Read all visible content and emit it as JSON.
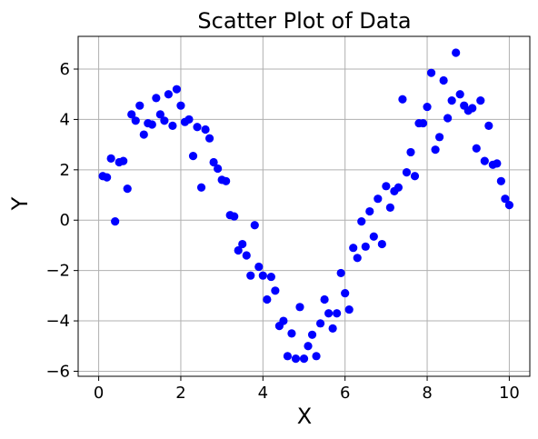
{
  "chart_data": {
    "type": "scatter",
    "title": "Scatter Plot of Data",
    "xlabel": "X",
    "ylabel": "Y",
    "xlim": [
      -0.5,
      10.5
    ],
    "ylim": [
      -6.2,
      7.3
    ],
    "xticks": [
      0,
      2,
      4,
      6,
      8,
      10
    ],
    "xtick_labels": [
      "0",
      "2",
      "4",
      "6",
      "8",
      "10"
    ],
    "yticks": [
      -6,
      -4,
      -2,
      0,
      2,
      4,
      6
    ],
    "ytick_labels": [
      "−6",
      "−4",
      "−2",
      "0",
      "2",
      "4",
      "6"
    ],
    "grid": true,
    "marker_color": "#0000ff",
    "x": [
      0.1,
      0.2,
      0.3,
      0.4,
      0.5,
      0.6,
      0.7,
      0.8,
      0.9,
      1.0,
      1.1,
      1.2,
      1.3,
      1.4,
      1.5,
      1.6,
      1.7,
      1.8,
      1.9,
      2.0,
      2.1,
      2.2,
      2.3,
      2.4,
      2.5,
      2.6,
      2.7,
      2.8,
      2.9,
      3.0,
      3.1,
      3.2,
      3.3,
      3.4,
      3.5,
      3.6,
      3.7,
      3.8,
      3.9,
      4.0,
      4.1,
      4.2,
      4.3,
      4.4,
      4.5,
      4.6,
      4.7,
      4.8,
      4.9,
      5.0,
      5.1,
      5.2,
      5.3,
      5.4,
      5.5,
      5.6,
      5.7,
      5.8,
      5.9,
      6.0,
      6.1,
      6.2,
      6.3,
      6.4,
      6.5,
      6.6,
      6.7,
      6.8,
      6.9,
      7.0,
      7.1,
      7.2,
      7.3,
      7.4,
      7.5,
      7.6,
      7.7,
      7.8,
      7.9,
      8.0,
      8.1,
      8.2,
      8.3,
      8.4,
      8.5,
      8.6,
      8.7,
      8.8,
      8.9,
      9.0,
      9.1,
      9.2,
      9.3,
      9.4,
      9.5,
      9.6,
      9.7,
      9.8,
      9.9,
      10.0
    ],
    "y": [
      1.75,
      1.7,
      2.45,
      -0.05,
      2.3,
      2.35,
      1.25,
      4.2,
      3.95,
      4.55,
      3.4,
      3.85,
      3.8,
      4.85,
      4.2,
      3.95,
      5.0,
      3.75,
      5.2,
      4.55,
      3.9,
      4.0,
      2.55,
      3.7,
      1.3,
      3.6,
      3.25,
      2.3,
      2.05,
      1.6,
      1.55,
      0.2,
      0.15,
      -1.2,
      -0.95,
      -1.4,
      -2.2,
      -0.2,
      -1.85,
      -2.2,
      -3.15,
      -2.25,
      -2.8,
      -4.2,
      -4.0,
      -5.4,
      -4.5,
      -5.5,
      -3.45,
      -5.5,
      -5.0,
      -4.55,
      -5.4,
      -4.1,
      -3.15,
      -3.7,
      -4.3,
      -3.7,
      -2.1,
      -2.9,
      -3.55,
      -1.1,
      -1.5,
      -0.05,
      -1.05,
      0.35,
      -0.65,
      0.85,
      -0.95,
      1.35,
      0.5,
      1.15,
      1.3,
      4.8,
      1.9,
      2.7,
      1.75,
      3.85,
      3.85,
      4.5,
      5.85,
      2.8,
      3.3,
      5.55,
      4.05,
      4.75,
      6.65,
      5.0,
      4.55,
      4.35,
      4.45,
      2.85,
      4.75,
      2.35,
      3.75,
      2.2,
      2.25,
      1.55,
      0.85,
      0.6
    ]
  }
}
